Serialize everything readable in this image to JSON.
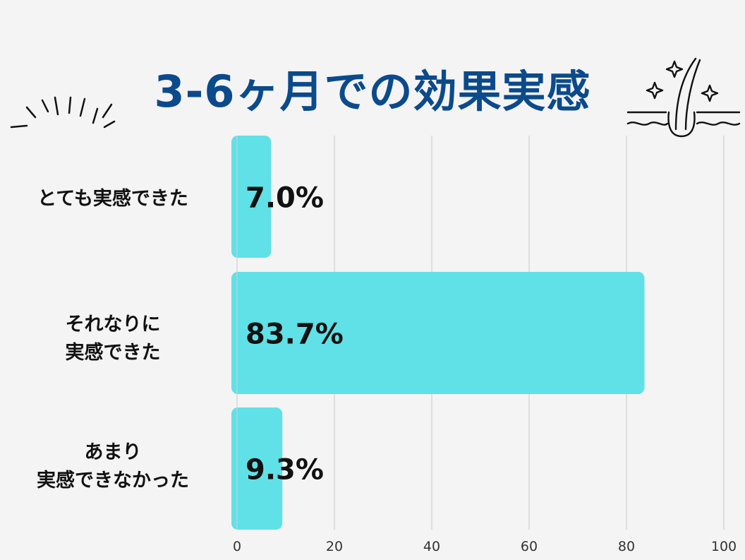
{
  "title": "3-6ヶ月での効果実感",
  "colors": {
    "title": "#0b4a8b",
    "bar": "#5fe1e7",
    "grid": "#cfcfcf",
    "text": "#111111",
    "background": "#f4f4f5"
  },
  "labels": [
    [
      "とても実感できた"
    ],
    [
      "それなりに",
      "実感できた"
    ],
    [
      "あまり",
      "実感できなかった"
    ]
  ],
  "decorations": {
    "left": "burst-lines-icon",
    "right": "hair-follicle-sparkle-icon"
  },
  "chart_data": {
    "type": "bar",
    "orientation": "horizontal",
    "categories": [
      "とても実感できた",
      "それなりに実感できた",
      "あまり実感できなかった"
    ],
    "values": [
      7.0,
      83.7,
      9.3
    ],
    "value_labels": [
      "7.0%",
      "83.7%",
      "9.3%"
    ],
    "xticks": [
      "0",
      "20",
      "40",
      "60",
      "80",
      "100"
    ],
    "xlim": [
      0,
      100
    ],
    "grid": "vertical",
    "legend": "none"
  }
}
